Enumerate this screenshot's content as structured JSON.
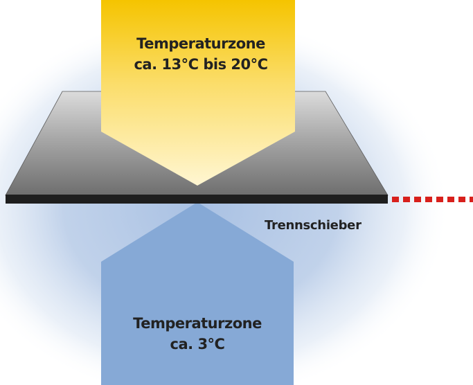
{
  "warm_zone": {
    "title": "Temperaturzone",
    "range": "ca. 13°C bis 20°C",
    "color_top": "#F5C400",
    "color_bottom": "#FFF3C4"
  },
  "cold_zone": {
    "title": "Temperaturzone",
    "range": "ca. 3°C",
    "color": "#86A9D6"
  },
  "divider": {
    "label": "Trennschieber",
    "color": "#1E1E1E",
    "dash_color": "#D8201C"
  },
  "background": {
    "glow_color": "#A9C1E3"
  }
}
